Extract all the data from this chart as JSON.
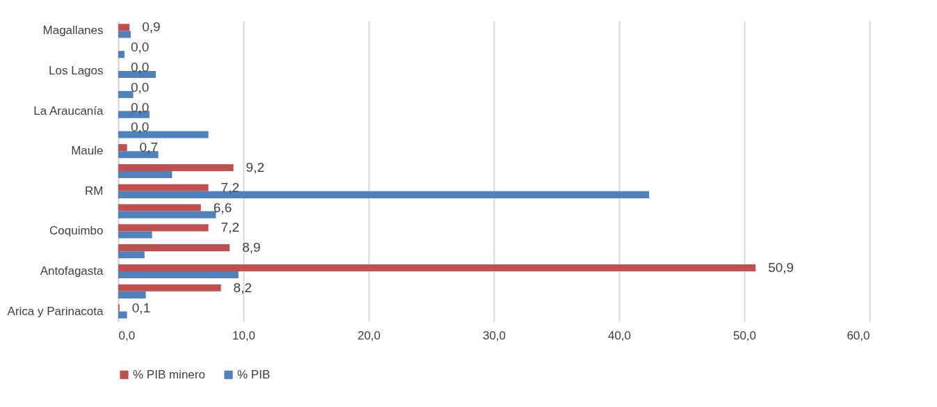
{
  "chart_data": {
    "type": "bar",
    "orientation": "horizontal",
    "categories": [
      "Magallanes",
      null,
      "Los Lagos",
      null,
      "La Araucanía",
      null,
      "Maule",
      null,
      "RM",
      null,
      "Coquimbo",
      null,
      "Antofagasta",
      null,
      "Arica y Parinacota"
    ],
    "series": [
      {
        "name": "% PIB minero",
        "color": "#c0504d",
        "values": [
          0.9,
          0.0,
          0.0,
          0.0,
          0.0,
          0.0,
          0.7,
          9.2,
          7.2,
          6.6,
          7.2,
          8.9,
          50.9,
          8.2,
          0.1
        ],
        "value_labels": [
          "0,9",
          "0,0",
          "0,0",
          "0,0",
          "0,0",
          "0,0",
          "0,7",
          "9,2",
          "7,2",
          "6,6",
          "7,2",
          "8,9",
          "50,9",
          "8,2",
          "0,1"
        ]
      },
      {
        "name": "% PIB",
        "color": "#4f81bd",
        "values": [
          1.0,
          0.5,
          3.0,
          1.2,
          2.5,
          7.2,
          3.2,
          4.3,
          42.4,
          7.8,
          2.7,
          2.1,
          9.6,
          2.2,
          0.7
        ]
      }
    ],
    "xlim": [
      0,
      60
    ],
    "xticks": [
      {
        "value": 0,
        "label": "0,0"
      },
      {
        "value": 10,
        "label": "10,0"
      },
      {
        "value": 20,
        "label": "20,0"
      },
      {
        "value": 30,
        "label": "30,0"
      },
      {
        "value": 40,
        "label": "40,0"
      },
      {
        "value": 50,
        "label": "50,0"
      },
      {
        "value": 60,
        "label": "60,0"
      }
    ],
    "grid": "x",
    "legend": "bottom"
  }
}
